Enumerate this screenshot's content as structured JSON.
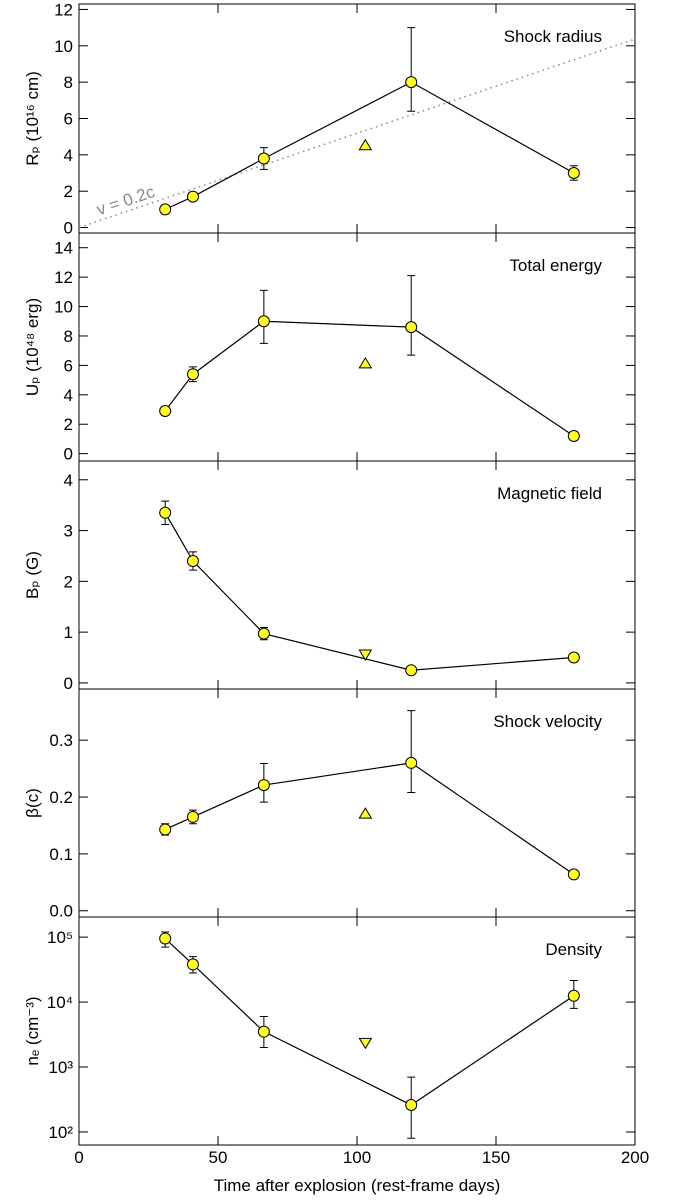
{
  "chart_data": [
    {
      "type": "line",
      "title": "Shock radius",
      "ylabel": "Rₚ (10¹⁶ cm)",
      "x": [
        31,
        41,
        66.5,
        119.5,
        178
      ],
      "series": [
        {
          "color": "#ffff22",
          "marker": "circle",
          "line": true,
          "values": [
            1.0,
            1.7,
            3.8,
            8.0,
            3.0
          ],
          "error_low": [
            0.2,
            0.2,
            0.6,
            1.6,
            0.4
          ],
          "error_high": [
            0.2,
            0.2,
            0.6,
            3.0,
            0.4
          ]
        },
        {
          "color": "#ffff22",
          "marker": "triangle-up",
          "line": false,
          "x": [
            103
          ],
          "values": [
            4.5
          ]
        }
      ],
      "reference_line": {
        "label": "v = 0.2c",
        "x": [
          0,
          200
        ],
        "y": [
          0,
          10.37
        ],
        "color": "#888888"
      },
      "xlim": [
        0,
        200
      ],
      "xticks": [
        0,
        50,
        100,
        150,
        200
      ],
      "ylim": [
        -0.3,
        12.3
      ],
      "yticks": [
        0,
        2,
        4,
        6,
        8,
        10,
        12
      ]
    },
    {
      "type": "line",
      "title": "Total energy",
      "ylabel": "Uₚ (10⁴⁸ erg)",
      "x": [
        31,
        41,
        66.5,
        119.5,
        178
      ],
      "series": [
        {
          "color": "#ffff22",
          "marker": "circle",
          "line": true,
          "values": [
            2.9,
            5.4,
            9.0,
            8.6,
            1.2
          ],
          "error_low": [
            0.3,
            0.5,
            1.5,
            1.9,
            0.3
          ],
          "error_high": [
            0.3,
            0.5,
            2.1,
            3.5,
            0.3
          ]
        },
        {
          "color": "#ffff22",
          "marker": "triangle-up",
          "line": false,
          "x": [
            103
          ],
          "values": [
            6.1
          ]
        }
      ],
      "xlim": [
        0,
        200
      ],
      "xticks": [
        0,
        50,
        100,
        150,
        200
      ],
      "ylim": [
        -0.5,
        15
      ],
      "yticks": [
        0,
        2,
        4,
        6,
        8,
        10,
        12,
        14
      ]
    },
    {
      "type": "line",
      "title": "Magnetic field",
      "ylabel": "Bₚ (G)",
      "x": [
        31,
        41,
        66.5,
        119.5,
        178
      ],
      "series": [
        {
          "color": "#ffff22",
          "marker": "circle",
          "line": true,
          "values": [
            3.35,
            2.4,
            0.97,
            0.25,
            0.5
          ],
          "error_low": [
            0.23,
            0.18,
            0.12,
            0.05,
            0.05
          ],
          "error_high": [
            0.23,
            0.18,
            0.12,
            0.05,
            0.05
          ]
        },
        {
          "color": "#ffff22",
          "marker": "triangle-down",
          "line": false,
          "x": [
            103
          ],
          "values": [
            0.57
          ]
        }
      ],
      "xlim": [
        0,
        200
      ],
      "xticks": [
        0,
        50,
        100,
        150,
        200
      ],
      "ylim": [
        -0.12,
        4.37
      ],
      "yticks": [
        0,
        1,
        2,
        3,
        4
      ]
    },
    {
      "type": "line",
      "title": "Shock velocity",
      "ylabel": "β(c)",
      "x": [
        31,
        41,
        66.5,
        119.5,
        178
      ],
      "series": [
        {
          "color": "#ffff22",
          "marker": "circle",
          "line": true,
          "values": [
            0.143,
            0.165,
            0.221,
            0.26,
            0.064
          ],
          "error_low": [
            0.01,
            0.012,
            0.03,
            0.052,
            0.006
          ],
          "error_high": [
            0.01,
            0.012,
            0.038,
            0.092,
            0.006
          ]
        },
        {
          "color": "#ffff22",
          "marker": "triangle-up",
          "line": false,
          "x": [
            103
          ],
          "values": [
            0.17
          ]
        }
      ],
      "xlim": [
        0,
        200
      ],
      "xticks": [
        0,
        50,
        100,
        150,
        200
      ],
      "ylim": [
        -0.011,
        0.39
      ],
      "yticks": [
        {
          "value": 0,
          "label": "0.0"
        },
        0.1,
        0.2,
        0.3
      ]
    },
    {
      "type": "line",
      "title": "Density",
      "ylabel": "nₑ (cm⁻³)",
      "xlabel": "Time after explosion (rest-frame days)",
      "x": [
        31,
        41,
        66.5,
        119.5,
        178
      ],
      "series": [
        {
          "color": "#ffff22",
          "marker": "circle",
          "line": true,
          "values": [
            95000,
            38000,
            3500,
            260,
            12500
          ],
          "error_low": [
            25000,
            10000,
            1500,
            180,
            4500
          ],
          "error_high": [
            25000,
            12000,
            2500,
            440,
            9000
          ]
        },
        {
          "color": "#ffff22",
          "marker": "triangle-down",
          "line": false,
          "x": [
            103
          ],
          "values": [
            2400
          ]
        }
      ],
      "log_y": true,
      "xlim": [
        0,
        200
      ],
      "xticks": [
        0,
        50,
        100,
        150,
        200
      ],
      "ylim": [
        63,
        204000
      ],
      "yticks": [
        {
          "value": 100,
          "label": "10²"
        },
        {
          "value": 1000,
          "label": "10³"
        },
        {
          "value": 10000,
          "label": "10⁴"
        },
        {
          "value": 100000,
          "label": "10⁵"
        }
      ]
    }
  ]
}
